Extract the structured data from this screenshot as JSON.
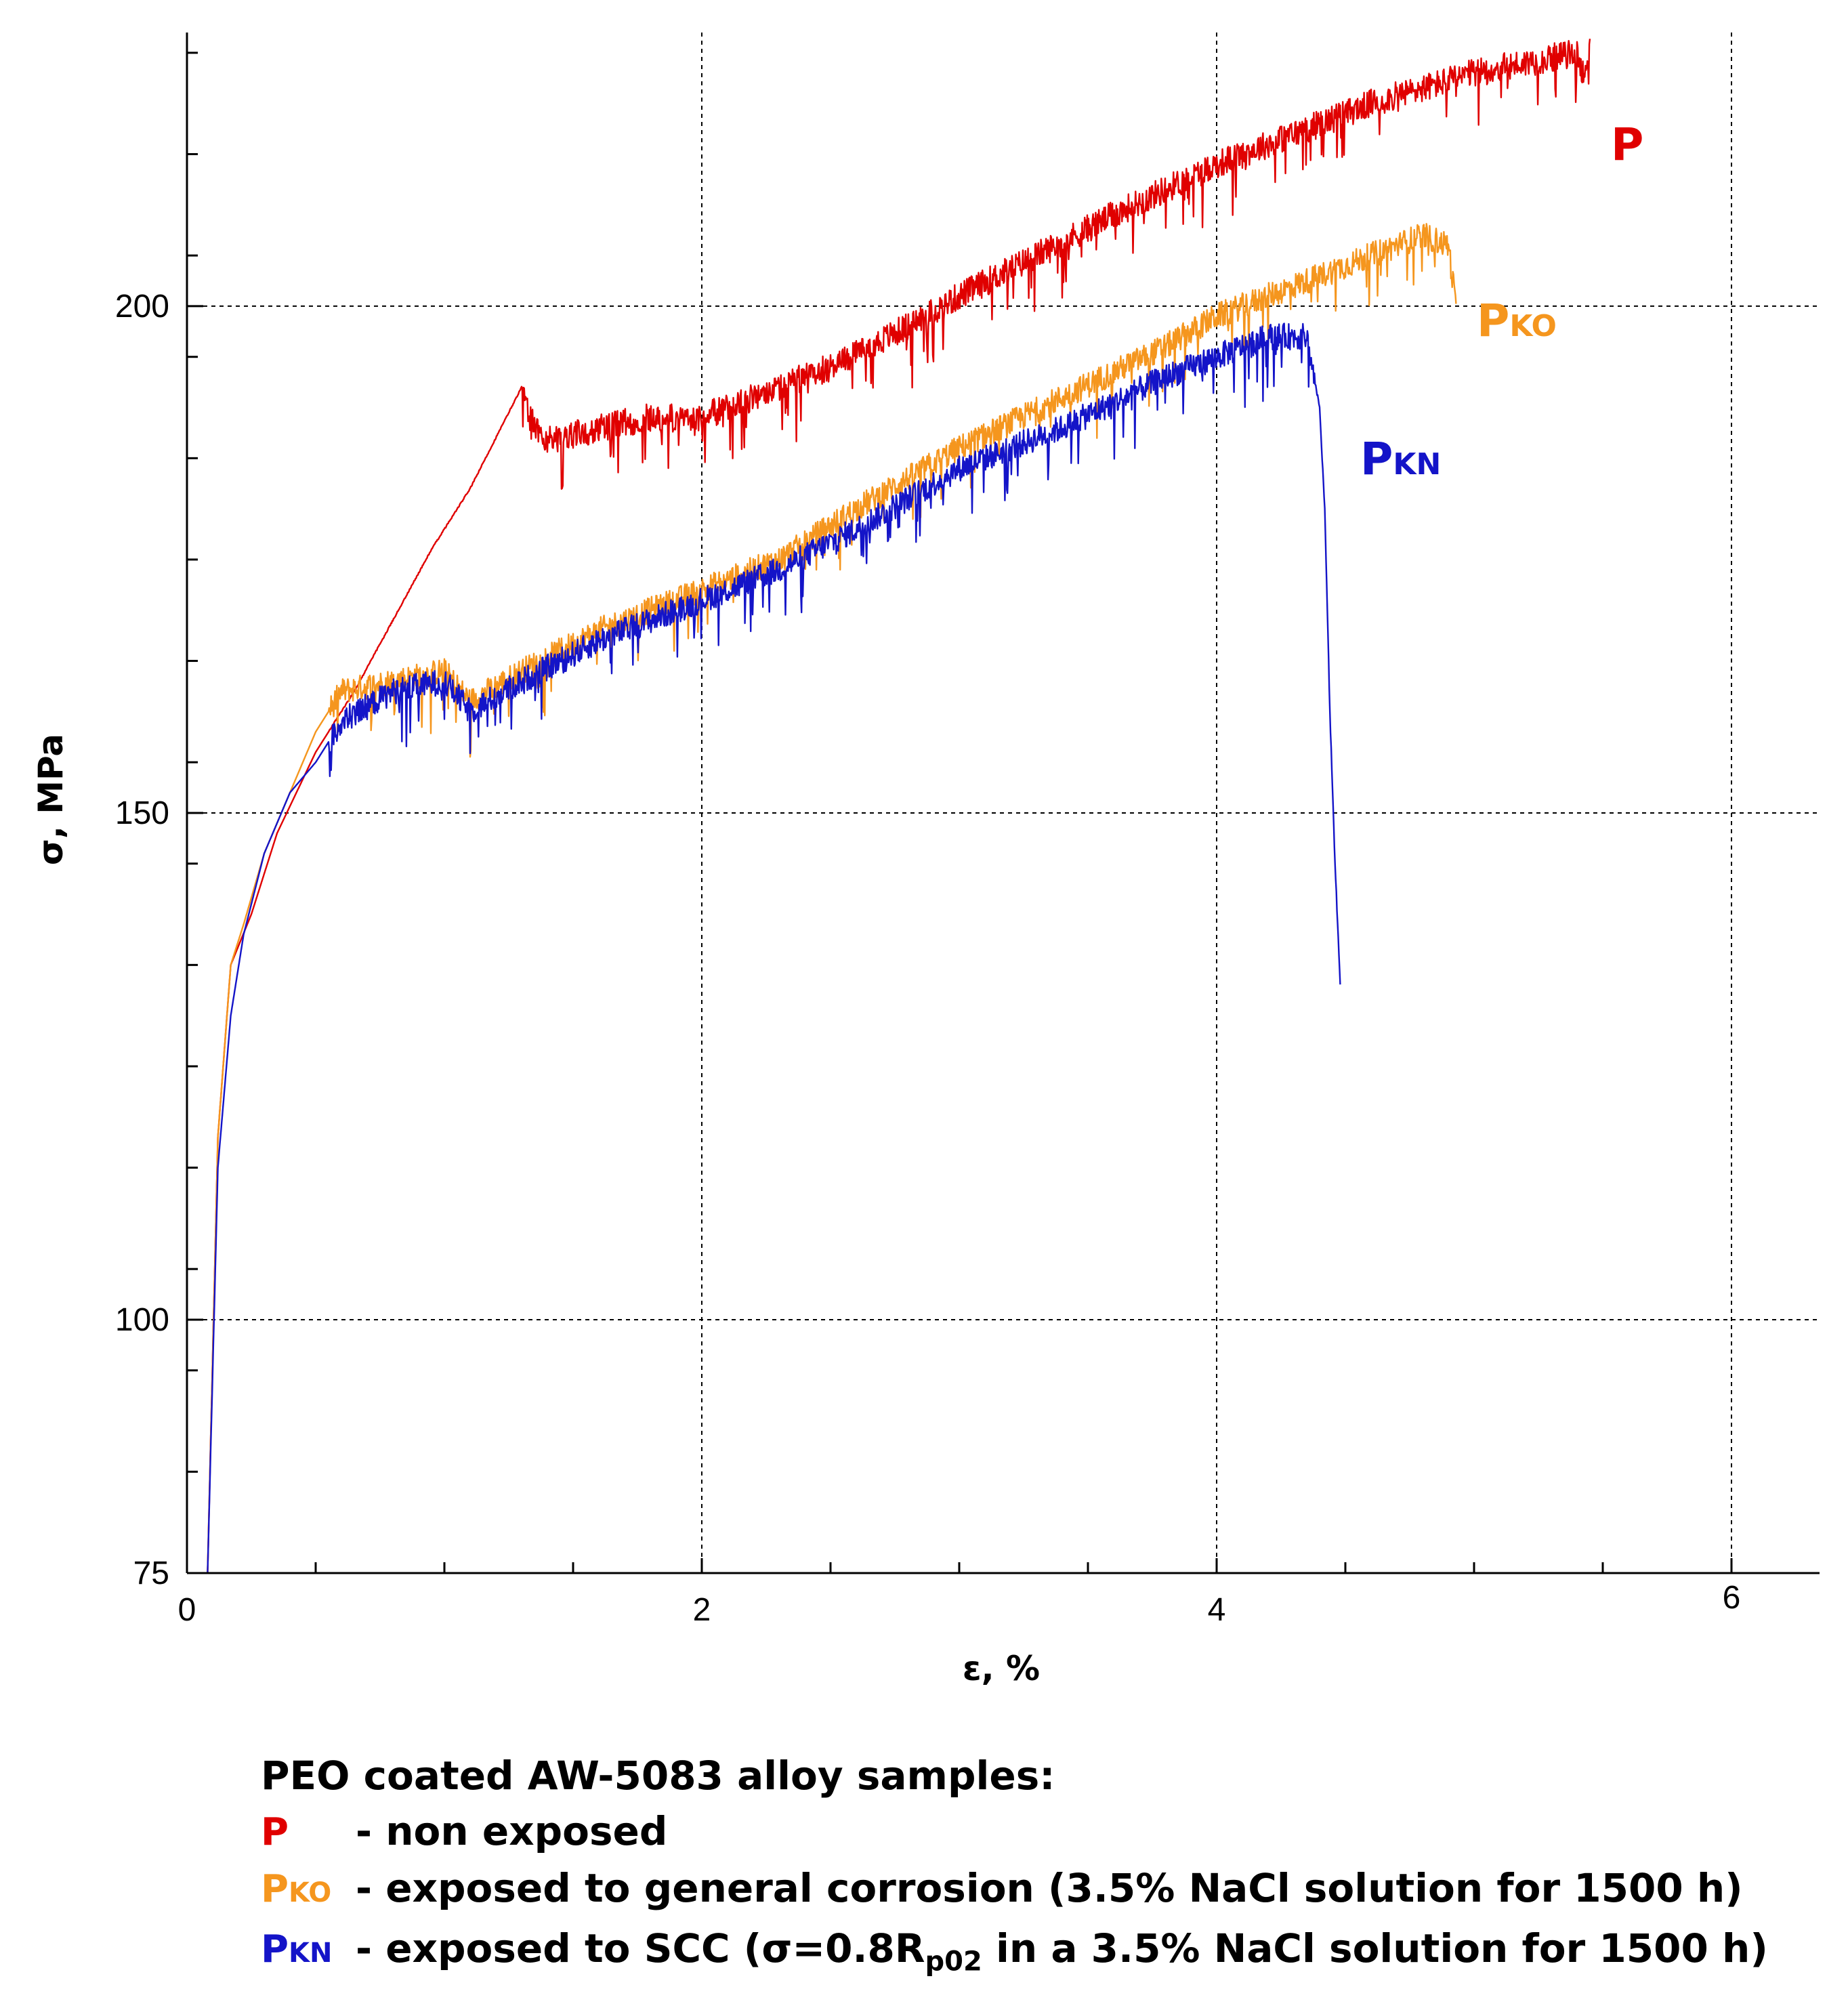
{
  "chart_data": {
    "type": "line",
    "title": "",
    "xlabel": "ε, %",
    "ylabel": "σ, MPa",
    "xlim": [
      0,
      6.3
    ],
    "ylim": [
      75,
      227
    ],
    "x_major_ticks": [
      0,
      2,
      4,
      6
    ],
    "x_tick_labels": [
      "0",
      "2",
      "4",
      "6"
    ],
    "y_tick_labels": [
      {
        "value": 75,
        "label": "75"
      },
      {
        "value": 100,
        "label": "100"
      },
      {
        "value": 150,
        "label": "150"
      },
      {
        "value": 200,
        "label": "200"
      }
    ],
    "grid": "dashed at major ticks",
    "series": [
      {
        "name": "P",
        "label_main": "P",
        "label_sub": "",
        "color": "#e00000",
        "noise": 1.4,
        "spikes": true,
        "x": [
          0.08,
          0.12,
          0.17,
          0.25,
          0.35,
          0.5,
          0.65,
          0.8,
          0.95,
          1.1,
          1.2,
          1.3,
          1.33,
          1.38,
          1.45,
          1.6,
          1.8,
          2.0,
          2.2,
          2.5,
          2.8,
          3.0,
          3.3,
          3.6,
          4.0,
          4.3,
          4.6,
          5.0,
          5.2,
          5.4,
          5.42,
          5.45
        ],
        "y": [
          75,
          118,
          135,
          140,
          148,
          156,
          162,
          169,
          176,
          182,
          187,
          192,
          189,
          187,
          187,
          188,
          189,
          189,
          191,
          194,
          198,
          201,
          205,
          209,
          214,
          217,
          220,
          223,
          224,
          225,
          223,
          225
        ]
      },
      {
        "name": "PKO",
        "label_main": "P",
        "label_sub": "KO",
        "color": "#f5961e",
        "noise": 1.3,
        "spikes": true,
        "x": [
          0.08,
          0.12,
          0.17,
          0.22,
          0.3,
          0.4,
          0.5,
          0.6,
          0.8,
          1.0,
          1.1,
          1.3,
          1.6,
          2.0,
          2.3,
          2.6,
          3.0,
          3.4,
          3.8,
          4.0,
          4.3,
          4.6,
          4.8,
          4.9,
          4.93
        ],
        "y": [
          75,
          118,
          135,
          139,
          146,
          152,
          158,
          162,
          163,
          164,
          161,
          164,
          168,
          172,
          175,
          180,
          186,
          191,
          196,
          199,
          202,
          205,
          207,
          206,
          200
        ]
      },
      {
        "name": "PKN",
        "label_main": "P",
        "label_sub": "KN",
        "color": "#1414c8",
        "noise": 1.3,
        "spikes": true,
        "x": [
          0.08,
          0.12,
          0.17,
          0.22,
          0.3,
          0.4,
          0.5,
          0.6,
          0.8,
          1.0,
          1.1,
          1.3,
          1.6,
          2.0,
          2.3,
          2.6,
          3.0,
          3.4,
          3.8,
          4.0,
          4.2,
          4.35,
          4.4,
          4.42,
          4.44,
          4.46,
          4.48
        ],
        "y": [
          75,
          115,
          130,
          138,
          146,
          152,
          155,
          159,
          162,
          163,
          160,
          163,
          167,
          171,
          174,
          178,
          184,
          188,
          193,
          195,
          197,
          197,
          190,
          180,
          160,
          145,
          133
        ]
      }
    ]
  },
  "legend": {
    "heading": "PEO coated AW-5083 alloy samples:",
    "items": [
      {
        "key_main": "P",
        "key_sub": "",
        "color": "#e00000",
        "text": "- non exposed"
      },
      {
        "key_main": "P",
        "key_sub": "KO",
        "color": "#f5961e",
        "text": "- exposed to general corrosion (3.5% NaCl solution for 1500 h)"
      },
      {
        "key_main": "P",
        "key_sub": "KN",
        "color": "#1414c8",
        "text_before": "- exposed to SCC (σ=0.8R",
        "text_sub": "p02",
        "text_after": " in a 3.5% NaCl solution for 1500 h)"
      }
    ]
  }
}
